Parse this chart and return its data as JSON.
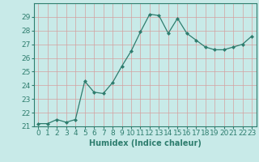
{
  "x": [
    0,
    1,
    2,
    3,
    4,
    5,
    6,
    7,
    8,
    9,
    10,
    11,
    12,
    13,
    14,
    15,
    16,
    17,
    18,
    19,
    20,
    21,
    22,
    23
  ],
  "y": [
    21.2,
    21.2,
    21.5,
    21.3,
    21.5,
    24.3,
    23.5,
    23.4,
    24.2,
    25.4,
    26.5,
    27.9,
    29.2,
    29.1,
    27.8,
    28.9,
    27.8,
    27.3,
    26.8,
    26.6,
    26.6,
    26.8,
    27.0,
    27.6
  ],
  "line_color": "#2e7d6e",
  "marker": "D",
  "marker_size": 2.0,
  "bg_color": "#c8eae8",
  "grid_color": "#b0d0d0",
  "xlabel": "Humidex (Indice chaleur)",
  "ylim": [
    21,
    30
  ],
  "xlim": [
    -0.5,
    23.5
  ],
  "yticks": [
    21,
    22,
    23,
    24,
    25,
    26,
    27,
    28,
    29
  ],
  "xticks": [
    0,
    1,
    2,
    3,
    4,
    5,
    6,
    7,
    8,
    9,
    10,
    11,
    12,
    13,
    14,
    15,
    16,
    17,
    18,
    19,
    20,
    21,
    22,
    23
  ],
  "xlabel_fontsize": 7,
  "tick_fontsize": 6.5
}
